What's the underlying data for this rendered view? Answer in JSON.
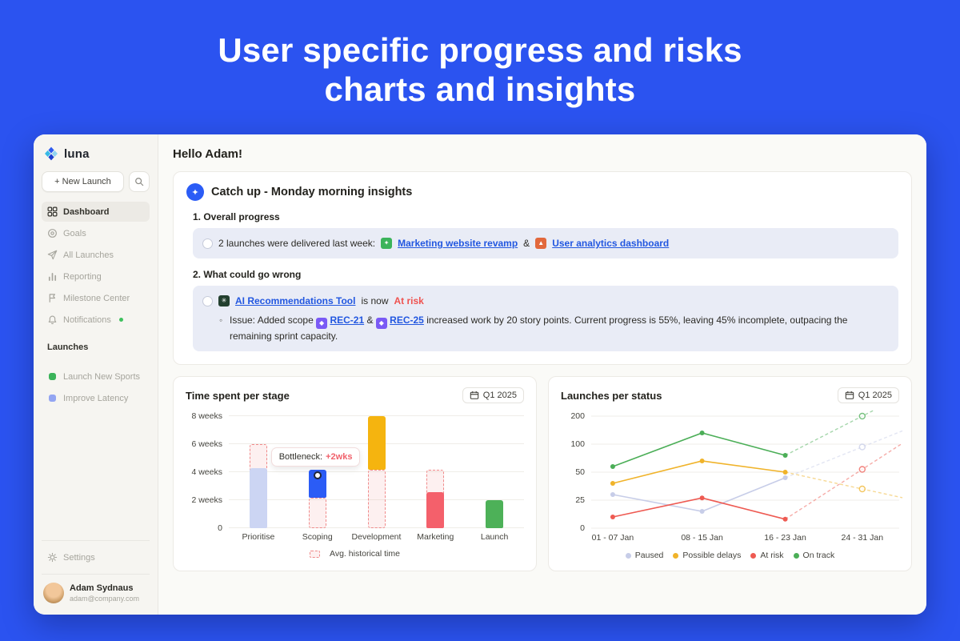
{
  "page": {
    "title_line1": "User specific progress and risks",
    "title_line2": "charts and insights",
    "background_color": "#2b53f0"
  },
  "icons": {
    "sparkle": "✦",
    "issue_bullet": "◦"
  },
  "sidebar": {
    "logo_text": "luna",
    "new_launch_label": "+ New Launch",
    "nav": [
      {
        "label": "Dashboard"
      },
      {
        "label": "Goals"
      },
      {
        "label": "All Launches"
      },
      {
        "label": "Reporting"
      },
      {
        "label": "Milestone Center"
      },
      {
        "label": "Notifications",
        "dot_color": "#3ec15e"
      }
    ],
    "launches_section": {
      "title": "Launches",
      "items": [
        {
          "label": "Launch New Sports",
          "color": "#3bb35a"
        },
        {
          "label": "Improve Latency",
          "color": "#93a5f2"
        }
      ]
    },
    "settings_label": "Settings",
    "user": {
      "name": "Adam Sydnaus",
      "email": "adam@company.com"
    }
  },
  "main": {
    "greeting": "Hello Adam!",
    "insights": {
      "title": "Catch up - Monday morning insights",
      "accent_color": "#2b5cf6",
      "section1": {
        "heading": "1. Overall progress",
        "prefix": "2 launches were delivered last week:",
        "link1": "Marketing website revamp",
        "separator": "&",
        "link2": "User analytics dashboard"
      },
      "section2": {
        "heading": "2. What could go wrong",
        "link": "AI Recommendations Tool",
        "mid": "is now",
        "status": "At risk",
        "status_color": "#ef5350",
        "issue_prefix": "Issue: Added scope",
        "ticket1": "REC-21",
        "separator": "&",
        "ticket2": "REC-25",
        "issue_suffix": "increased work by 20 story points. Current progress is 55%, leaving 45% incomplete, outpacing the remaining sprint capacity."
      },
      "app_icons": {
        "marketing": {
          "color": "#3bb35a",
          "glyph": "✦"
        },
        "analytics": {
          "color": "#e2683c",
          "glyph": "▲"
        },
        "ai_tool": {
          "color": "#23402f",
          "glyph": "✳"
        },
        "ticket": {
          "color": "#7a5af5",
          "glyph": "◆"
        }
      }
    }
  },
  "chart_data": [
    {
      "type": "bar",
      "title": "Time spent per stage",
      "period": "Q1 2025",
      "unit": "weeks",
      "ymax": 8,
      "y_ticks": [
        {
          "value": 0,
          "label": "0"
        },
        {
          "value": 2,
          "label": "2 weeks"
        },
        {
          "value": 4,
          "label": "4 weeks"
        },
        {
          "value": 6,
          "label": "6 weeks"
        },
        {
          "value": 8,
          "label": "8 weeks"
        }
      ],
      "categories": [
        "Prioritise",
        "Scoping",
        "Development",
        "Marketing",
        "Launch"
      ],
      "bars": [
        {
          "label": "Prioritise",
          "color": "#ccd5f3",
          "actual_from": 0,
          "actual_to": 4.3,
          "historical": 6
        },
        {
          "label": "Scoping",
          "color": "#2b5cf6",
          "actual_from": 2.2,
          "actual_to": 4.2,
          "historical": 2.2
        },
        {
          "label": "Development",
          "color": "#f5b40f",
          "actual_from": 4.2,
          "actual_to": 8,
          "historical": 4.2
        },
        {
          "label": "Marketing",
          "color": "#f4606b",
          "actual_from": 0,
          "actual_to": 2.6,
          "historical": 4.2
        },
        {
          "label": "Launch",
          "color": "#4db158",
          "actual_from": 0,
          "actual_to": 2,
          "historical": null
        }
      ],
      "tooltip": {
        "label": "Bottleneck:",
        "value": "+2wks",
        "value_color": "#f0626c",
        "anchor_category": "Scoping",
        "anchor_week": 3.8
      },
      "legend_label": "Avg. historical time",
      "historical_style": {
        "border_color": "#f08a8a",
        "fill_color": "rgba(244,160,160,0.16)"
      }
    },
    {
      "type": "line",
      "title": "Launches per status",
      "period": "Q1 2025",
      "y_ticks": [
        0,
        25,
        50,
        100,
        200
      ],
      "x_labels": [
        "01 - 07 Jan",
        "08 - 15 Jan",
        "16 - 23 Jan",
        "24 - 31 Jan"
      ],
      "projection_from_index": 2,
      "series": [
        {
          "name": "Paused",
          "color": "#c7cde8",
          "values": [
            30,
            15,
            45,
            95
          ]
        },
        {
          "name": "Possible delays",
          "color": "#f0b32a",
          "values": [
            40,
            70,
            50,
            35
          ]
        },
        {
          "name": "At risk",
          "color": "#ee5a52",
          "values": [
            10,
            27,
            8,
            55
          ]
        },
        {
          "name": "On track",
          "color": "#4bae57",
          "values": [
            60,
            140,
            80,
            200
          ]
        }
      ]
    }
  ]
}
